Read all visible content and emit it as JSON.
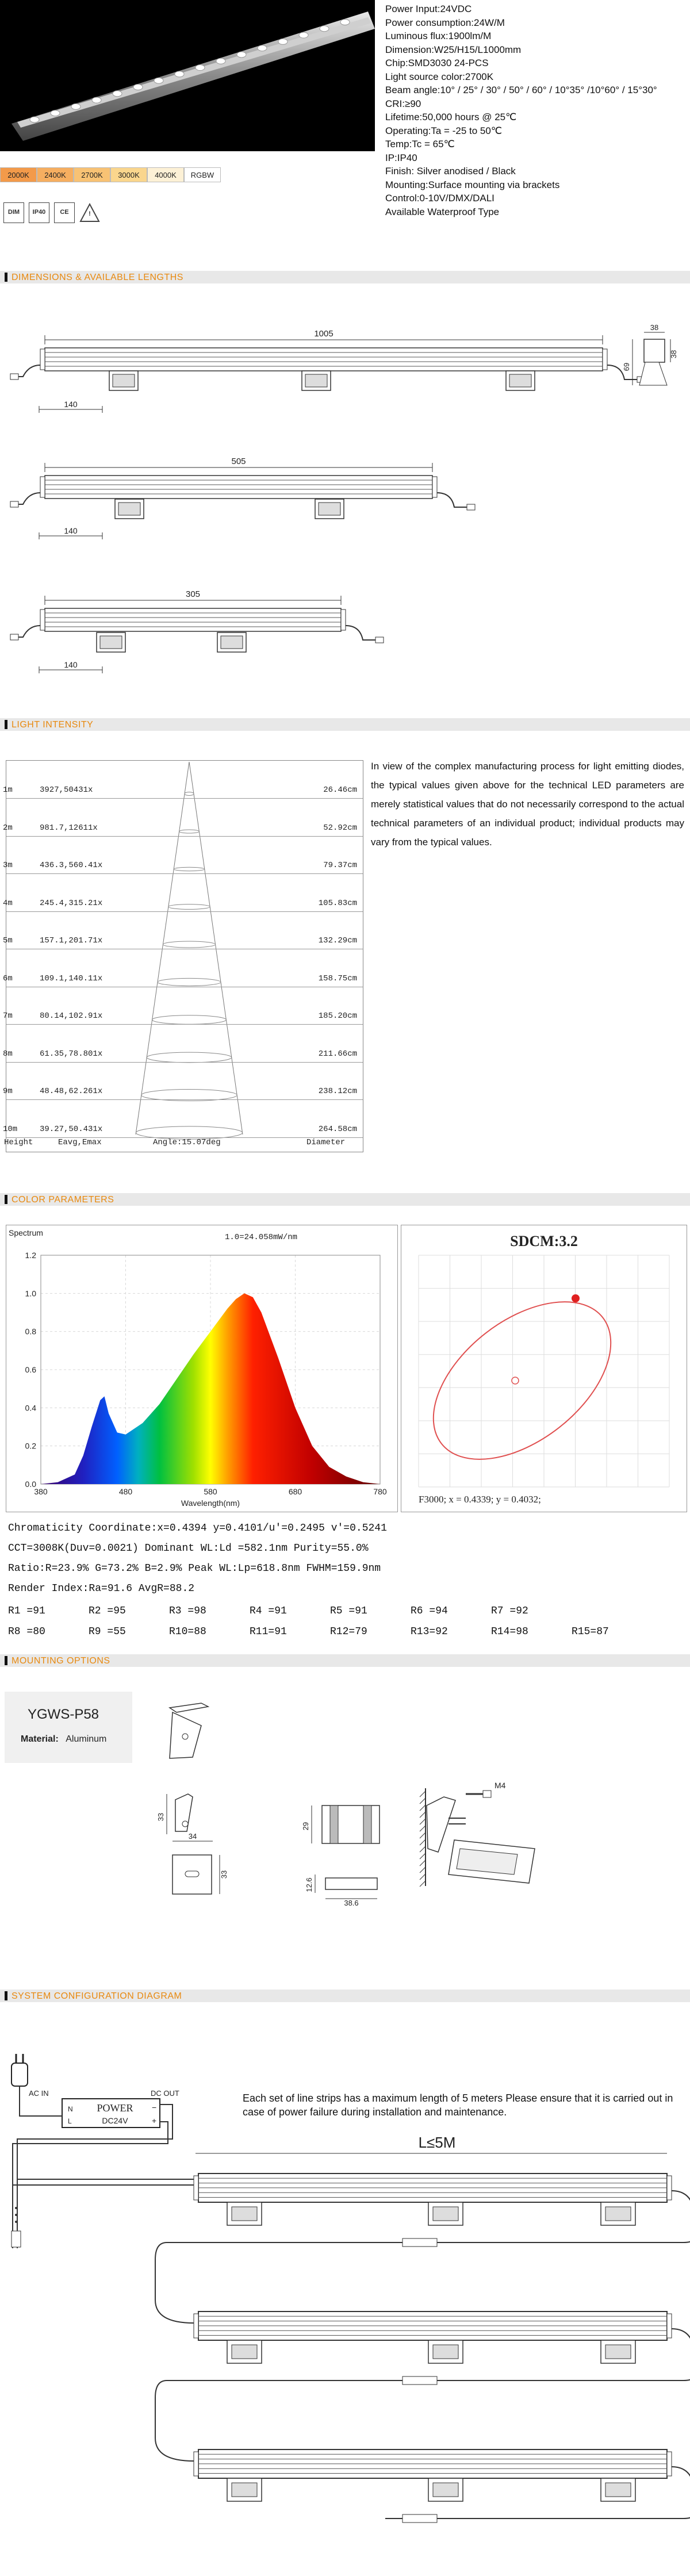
{
  "specs": [
    "Power Input:24VDC",
    "Power consumption:24W/M",
    "Luminous flux:1900lm/M",
    "Dimension:W25/H15/L1000mm",
    "Chip:SMD3030 24-PCS",
    "Light source color:2700K",
    "Beam angle:10° / 25° / 30° / 50° / 60° / 10°35° /10°60° / 15°30°",
    "CRI:≥90",
    "Lifetime:50,000 hours @ 25℃",
    "Operating:Ta = -25 to 50℃",
    "Temp:Tc = 65℃",
    "IP:IP40",
    "Finish: Silver anodised / Black",
    "Mounting:Surface mounting via brackets",
    "Control:0-10V/DMX/DALI",
    "Available Waterproof Type"
  ],
  "color_chips": [
    {
      "label": "2000K",
      "color": "#f39a4a"
    },
    {
      "label": "2400K",
      "color": "#f6ae60"
    },
    {
      "label": "2700K",
      "color": "#f8c274"
    },
    {
      "label": "3000K",
      "color": "#fad68d"
    },
    {
      "label": "4000K",
      "color": "#fdf1d6"
    },
    {
      "label": "RGBW",
      "color": "#ffffff"
    }
  ],
  "cert_icons": [
    {
      "name": "dimmable-icon",
      "text": "DIM"
    },
    {
      "name": "ip40-icon",
      "text": "IP40"
    },
    {
      "name": "ce-icon",
      "text": "CE"
    },
    {
      "name": "warning-icon",
      "text": "!"
    }
  ],
  "sections": {
    "dimensions": "DIMENSIONS & AVAILABLE LENGTHS",
    "intensity": "LIGHT INTENSITY",
    "color": "COLOR PARAMETERS",
    "mounting": "MOUNTING OPTIONS",
    "system": "SYSTEM CONFIGURATION DIAGRAM"
  },
  "dimensions": {
    "lengths": [
      "1005",
      "505",
      "305"
    ],
    "bracket_offset": "140",
    "side_width": "38",
    "side_height": "69",
    "side_inner": "38"
  },
  "intensity": {
    "rows": [
      {
        "h": "1m",
        "e": "3927,50431x",
        "d": "26.46cm"
      },
      {
        "h": "2m",
        "e": "981.7,12611x",
        "d": "52.92cm"
      },
      {
        "h": "3m",
        "e": "436.3,560.41x",
        "d": "79.37cm"
      },
      {
        "h": "4m",
        "e": "245.4,315.21x",
        "d": "105.83cm"
      },
      {
        "h": "5m",
        "e": "157.1,201.71x",
        "d": "132.29cm"
      },
      {
        "h": "6m",
        "e": "109.1,140.11x",
        "d": "158.75cm"
      },
      {
        "h": "7m",
        "e": "80.14,102.91x",
        "d": "185.20cm"
      },
      {
        "h": "8m",
        "e": "61.35,78.801x",
        "d": "211.66cm"
      },
      {
        "h": "9m",
        "e": "48.48,62.261x",
        "d": "238.12cm"
      },
      {
        "h": "10m",
        "e": "39.27,50.431x",
        "d": "264.58cm"
      }
    ],
    "footer_height": "Height",
    "footer_eavg": "Eavg,Emax",
    "footer_angle": "Angle:15.07deg",
    "footer_diameter": "Diameter",
    "note": "In view of the complex manufacturing process for light emitting diodes, the typical values given above for the technical LED parameters are merely statistical values that do not necessarily correspond to the actual technical parameters of an individual product; individual products may vary from the typical values."
  },
  "chart_data": [
    {
      "type": "area",
      "ylabel": "Spectrum",
      "xlabel": "Wavelength(nm)",
      "annotation": "1.0=24.058mW/nm",
      "xlim": [
        380,
        780
      ],
      "ylim": [
        0,
        1.2
      ],
      "xticks": [
        "380",
        "480",
        "580",
        "680",
        "780"
      ],
      "yticks": [
        "0.0",
        "0.2",
        "0.4",
        "0.6",
        "0.8",
        "1.0",
        "1.2"
      ],
      "x": [
        380,
        400,
        420,
        430,
        440,
        450,
        455,
        460,
        470,
        480,
        500,
        520,
        540,
        560,
        580,
        600,
        610,
        620,
        630,
        640,
        660,
        680,
        700,
        720,
        740,
        760,
        780
      ],
      "y": [
        0.0,
        0.01,
        0.05,
        0.15,
        0.3,
        0.44,
        0.46,
        0.37,
        0.27,
        0.26,
        0.32,
        0.42,
        0.55,
        0.68,
        0.8,
        0.92,
        0.97,
        1.0,
        0.98,
        0.9,
        0.66,
        0.4,
        0.2,
        0.09,
        0.04,
        0.01,
        0.0
      ]
    },
    {
      "type": "scatter",
      "title": "SDCM:3.2",
      "annotation": "F3000;  x = 0.4339;  y = 0.4032;",
      "points": [
        {
          "name": "center",
          "color": "#e05050",
          "style": "hollow"
        },
        {
          "name": "measured",
          "color": "#e02020",
          "style": "filled"
        }
      ]
    }
  ],
  "color_readings": [
    "Chromaticity Coordinate:x=0.4394  y=0.4101/u'=0.2495 v'=0.5241",
    "CCT=3008K(Duv=0.0021) Dominant WL:Ld =582.1nm Purity=55.0%",
    "Ratio:R=23.9% G=73.2% B=2.9%  Peak WL:Lp=618.8nm  FWHM=159.9nm",
    "Render Index:Ra=91.6   AvgR=88.2"
  ],
  "r_values_row1": [
    "R1 =91",
    "R2 =95",
    "R3 =98",
    "R4 =91",
    "R5 =91",
    "R6 =94",
    "R7 =92"
  ],
  "r_values_row2": [
    "R8 =80",
    "R9 =55",
    "R10=88",
    "R11=91",
    "R12=79",
    "R13=92",
    "R14=98",
    "R15=87"
  ],
  "mounting": {
    "model": "YGWS-P58",
    "material_label": "Material:",
    "material": "Aluminum",
    "dims": [
      "33",
      "34",
      "33",
      "29",
      "12.6",
      "38.6"
    ],
    "screw": "M4"
  },
  "system": {
    "ac_in": "AC IN",
    "dc_out": "DC OUT",
    "power": "POWER",
    "voltage": "DC24V",
    "n": "N",
    "l": "L",
    "minus": "−",
    "plus": "+",
    "max_len": "L≤5M",
    "note": "Each set of line strips has a maximum length of 5 meters Please ensure that it is carried out in case of power failure during installation and maintenance."
  }
}
